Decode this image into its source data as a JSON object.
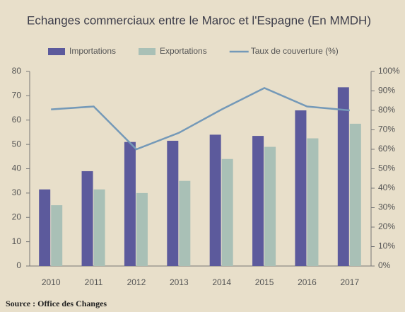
{
  "chart_data": {
    "type": "bar",
    "title": "Echanges commerciaux entre le Maroc et l'Espagne (En MMDH)",
    "categories": [
      "2010",
      "2011",
      "2012",
      "2013",
      "2014",
      "2015",
      "2016",
      "2017"
    ],
    "series": [
      {
        "name": "Importations",
        "type": "bar",
        "color": "#5c5a9c",
        "values": [
          31.5,
          39,
          51,
          51.5,
          54,
          53.5,
          64,
          73.5
        ]
      },
      {
        "name": "Exportations",
        "type": "bar",
        "color": "#a9c0b6",
        "values": [
          25,
          31.5,
          30,
          35,
          44,
          49,
          52.5,
          58.5
        ]
      },
      {
        "name": "Taux de couverture (%)",
        "type": "line",
        "axis": "y2",
        "color": "#7499b8",
        "values": [
          80.5,
          82,
          60,
          68.5,
          80.5,
          91.5,
          82,
          80
        ]
      }
    ],
    "ylim": [
      0,
      80
    ],
    "yticks": [
      0,
      10,
      20,
      30,
      40,
      50,
      60,
      70,
      80
    ],
    "y2lim": [
      0,
      100
    ],
    "y2ticks": [
      {
        "value": 0,
        "label": "0%"
      },
      {
        "value": 10,
        "label": "10%"
      },
      {
        "value": 20,
        "label": "20%"
      },
      {
        "value": 30,
        "label": "30%"
      },
      {
        "value": 40,
        "label": "40%"
      },
      {
        "value": 50,
        "label": "50%"
      },
      {
        "value": 60,
        "label": "60%"
      },
      {
        "value": 70,
        "label": "70%"
      },
      {
        "value": 80,
        "label": "80%"
      },
      {
        "value": 90,
        "label": "90%"
      },
      {
        "value": 100,
        "label": "100%"
      }
    ],
    "legend": "top",
    "source": "Source : Office des Changes"
  }
}
